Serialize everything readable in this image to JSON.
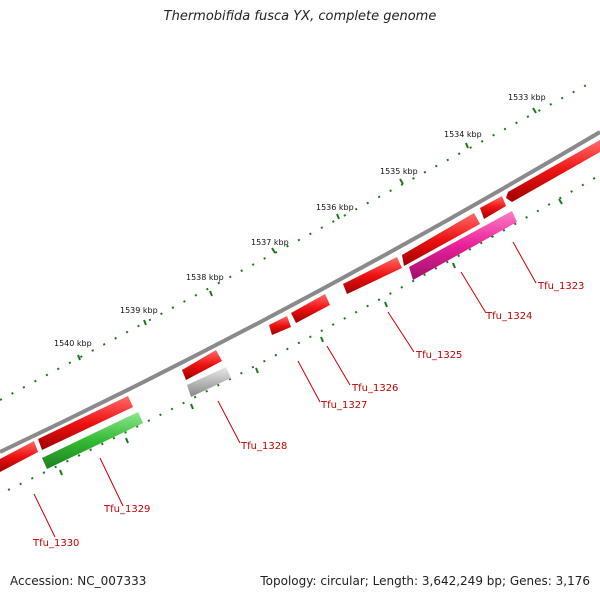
{
  "title": "Thermobifida fusca YX, complete genome",
  "footer": {
    "accession": "Accession: NC_007333",
    "summary": "Topology: circular; Length: 3,642,249 bp; Genes: 3,176"
  },
  "colors": {
    "backbone": "#8a8a8a",
    "gene_red": "#ee1111",
    "gene_pink": "#e8209a",
    "gene_green": "#33bb33",
    "gene_gray": "#b8b8b8",
    "tick_green": "#1a7a1a",
    "label_red": "#c00000"
  },
  "kbp_markers": [
    {
      "label": "1533 kbp"
    },
    {
      "label": "1534 kbp"
    },
    {
      "label": "1535 kbp"
    },
    {
      "label": "1536 kbp"
    },
    {
      "label": "1537 kbp"
    },
    {
      "label": "1538 kbp"
    },
    {
      "label": "1539 kbp"
    },
    {
      "label": "1540 kbp"
    }
  ],
  "genes": [
    {
      "label": "Tfu_1323",
      "color": "pink"
    },
    {
      "label": "Tfu_1324",
      "color": "red"
    },
    {
      "label": "Tfu_1325",
      "color": "red"
    },
    {
      "label": "Tfu_1326",
      "color": "red"
    },
    {
      "label": "Tfu_1327",
      "color": "red"
    },
    {
      "label": "Tfu_1328",
      "color": "gray"
    },
    {
      "label": "Tfu_1329",
      "color": "green"
    },
    {
      "label": "Tfu_1330",
      "color": "red"
    }
  ]
}
